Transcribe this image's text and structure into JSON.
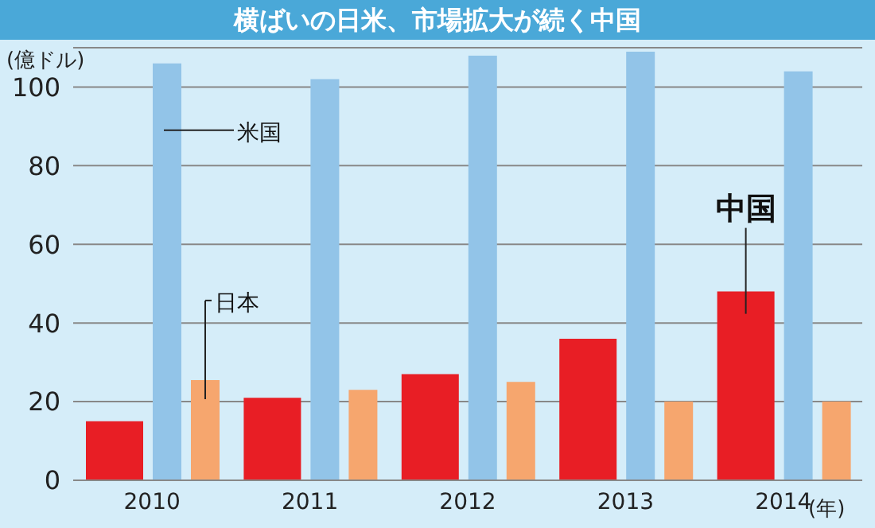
{
  "chart_data": {
    "type": "bar",
    "title": "横ばいの日米、市場拡大が続く中国",
    "ylabel": "(億ドル)",
    "xlabel": "(年)",
    "categories": [
      "2010",
      "2011",
      "2012",
      "2013",
      "2014"
    ],
    "series": [
      {
        "name": "中国",
        "color": "#e81e25",
        "values": [
          15,
          21,
          27,
          36,
          48
        ]
      },
      {
        "name": "米国",
        "color": "#92c4e8",
        "values": [
          106,
          102,
          108,
          109,
          104
        ]
      },
      {
        "name": "日本",
        "color": "#f6a66e",
        "values": [
          25.5,
          23,
          25,
          20,
          20
        ]
      }
    ],
    "ylim": [
      0,
      110
    ],
    "yticks": [
      0,
      20,
      40,
      60,
      80,
      100
    ],
    "grid": "y",
    "legend": false
  }
}
